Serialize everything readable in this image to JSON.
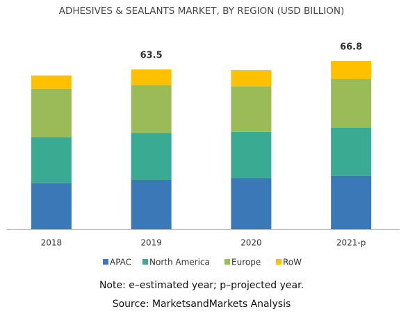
{
  "chart_data": {
    "type": "stacked_bar",
    "title": "ADHESIVES & SEALANTS MARKET, BY REGION (USD BILLION)",
    "categories": [
      "2018",
      "2019",
      "2020",
      "2021-p"
    ],
    "series": [
      {
        "name": "APAC",
        "color": "#3a78b8",
        "values": [
          18.3,
          19.6,
          20.3,
          21.3
        ]
      },
      {
        "name": "North America",
        "color": "#3aab92",
        "values": [
          18.3,
          18.7,
          18.4,
          19.1
        ]
      },
      {
        "name": "Europe",
        "color": "#9bbb59",
        "values": [
          19.2,
          19.0,
          18.1,
          19.4
        ]
      },
      {
        "name": "RoW",
        "color": "#ffc000",
        "values": [
          5.3,
          6.2,
          6.4,
          7.0
        ]
      }
    ],
    "totals": [
      null,
      63.5,
      null,
      66.8
    ],
    "notes": [
      "Note: e–estimated year; p–projected year.",
      "Source: MarketsandMarkets Analysis"
    ]
  }
}
